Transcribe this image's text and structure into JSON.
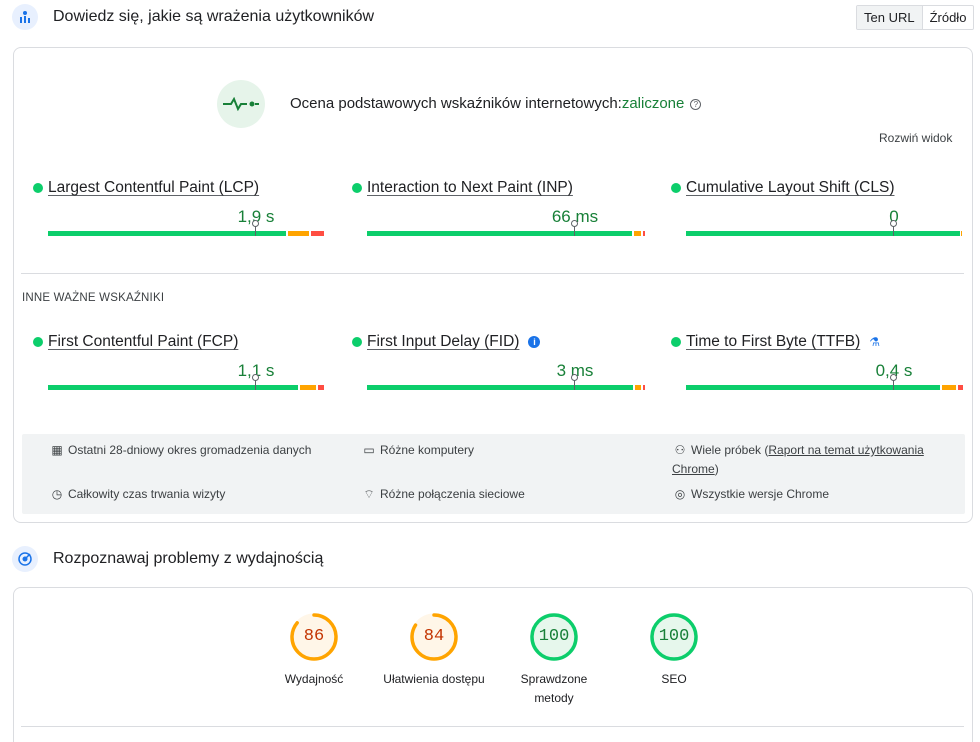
{
  "ux_section": {
    "title": "Dowiedz się, jakie są wrażenia użytkowników",
    "toggle": [
      "Ten URL",
      "Źródło"
    ]
  },
  "assessment": {
    "prefix": "Ocena podstawowych wskaźników internetowych:",
    "status": "zaliczone",
    "expand": "Rozwiń widok"
  },
  "core_metrics": [
    {
      "name": "Largest Contentful Paint (LCP)",
      "value": "1,9 s"
    },
    {
      "name": "Interaction to Next Paint (INP)",
      "value": "66 ms"
    },
    {
      "name": "Cumulative Layout Shift (CLS)",
      "value": "0"
    }
  ],
  "other_label": "INNE WAŻNE WSKAŹNIKI",
  "other_metrics": [
    {
      "name": "First Contentful Paint (FCP)",
      "value": "1,1 s"
    },
    {
      "name": "First Input Delay (FID)",
      "value": "3 ms"
    },
    {
      "name": "Time to First Byte (TTFB)",
      "value": "0,4 s"
    }
  ],
  "meta": {
    "period": "Ostatni 28-dniowy okres gromadzenia danych",
    "devices": "Różne komputery",
    "samples_prefix": "Wiele próbek (",
    "samples_link": "Raport na temat użytkowania",
    "samples_link2": "Chrome",
    "samples_suffix": ")",
    "duration": "Całkowity czas trwania wizyty",
    "network": "Różne połączenia sieciowe",
    "chrome": "Wszystkie wersje Chrome"
  },
  "perf_section": {
    "title": "Rozpoznawaj problemy z wydajnością"
  },
  "scores": [
    {
      "score": "86",
      "label": "Wydajność",
      "fraction": 0.86,
      "status": "average"
    },
    {
      "score": "84",
      "label": "Ułatwienia dostępu",
      "fraction": 0.84,
      "status": "average"
    },
    {
      "score": "100",
      "label": "Sprawdzone metody",
      "fraction": 1.0,
      "status": "pass"
    },
    {
      "score": "100",
      "label": "SEO",
      "fraction": 1.0,
      "status": "pass"
    }
  ],
  "colors": {
    "pass": "#0cce6b",
    "pass_text": "#188038",
    "average": "#ffa400",
    "average_text": "#c33300",
    "fail": "#ff4e42"
  }
}
